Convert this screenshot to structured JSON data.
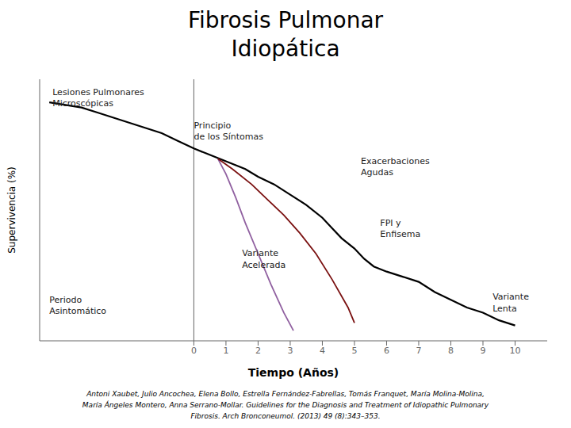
{
  "chart_data": {
    "type": "line",
    "title": "Fibrosis Pulmonar\nIdiopática",
    "x_label": "Tiempo (Años)",
    "y_label": "Supervivencia (%)",
    "annotations": [
      "Lesiones Pulmonares\nMicroscópicas",
      "Principio\nde los Síntomas",
      "Exacerbaciones\nAgudas",
      "Variante\nAcelerada",
      "FPI y\nEnfisema",
      "Variante\nLenta",
      "Periodo\nAsintomático",
      "Antoni Xaubet, Julio Ancochea, Elena Bollo, Estrella Fernández-Fabrellas, Tomás Franquet, María Molina-Molina,\nMaría Ángeles Montero, Anna Serrano-Mollar. Guidelines for the Diagnosis and Treatment of Idiopathic Pulmonary\nFibrosis. Arch Bronconeumol. (2013) 49 (8):343–353."
    ],
    "series": [
      {
        "color": "#000000",
        "x": [
          -4.5,
          -4.0,
          -3.5,
          -3.0,
          -2.5,
          -2.0,
          -1.5,
          -1.0,
          -0.5,
          0.0,
          0.4,
          0.8,
          1.2,
          1.6,
          2.0,
          2.5,
          3.0,
          3.5,
          4.0,
          4.3,
          4.6,
          5.0,
          5.3,
          5.6,
          6.0,
          6.5,
          7.0,
          7.5,
          8.0,
          8.5,
          9.0,
          9.5,
          10.0
        ],
        "values": [
          93,
          92,
          91,
          89,
          87,
          85,
          83,
          81,
          78,
          75,
          73,
          71,
          69,
          67,
          64,
          61,
          57,
          53,
          48,
          44,
          40,
          36,
          32,
          29,
          27,
          25,
          23,
          19,
          16,
          13,
          11,
          8,
          6
        ]
      },
      {
        "color": "#9060a0",
        "x": [
          0.75,
          1.0,
          1.3,
          1.6,
          2.0,
          2.4,
          2.8,
          3.1
        ],
        "values": [
          71,
          65,
          56,
          46,
          34,
          22,
          11,
          4
        ]
      },
      {
        "color": "#7a1010",
        "x": [
          0.75,
          1.2,
          1.8,
          2.3,
          2.8,
          3.3,
          3.8,
          4.3,
          4.8,
          5.0
        ],
        "values": [
          71,
          67,
          61,
          55,
          49,
          42,
          34,
          24,
          13,
          7
        ]
      }
    ],
    "xlim": [
      -4.8,
      11.0
    ],
    "ylim": [
      0,
      102
    ],
    "xticks": [
      0,
      1,
      2,
      3,
      4,
      5,
      6,
      7,
      8,
      9,
      10
    ],
    "tick_labels": "x",
    "grid": false
  }
}
